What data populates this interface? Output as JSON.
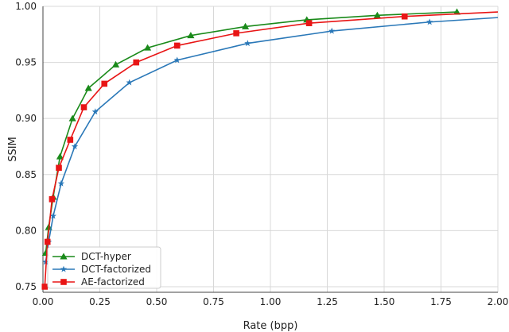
{
  "chart_data": {
    "type": "line",
    "title": "",
    "xlabel": "Rate (bpp)",
    "ylabel": "SSIM",
    "xlim": [
      0.0,
      2.0
    ],
    "ylim": [
      0.745,
      1.0
    ],
    "xticks": [
      0.0,
      0.25,
      0.5,
      0.75,
      1.0,
      1.25,
      1.5,
      1.75,
      2.0
    ],
    "xtick_labels": [
      "0.00",
      "0.25",
      "0.50",
      "0.75",
      "1.00",
      "1.25",
      "1.50",
      "1.75",
      "2.00"
    ],
    "yticks": [
      0.75,
      0.8,
      0.85,
      0.9,
      0.95,
      1.0
    ],
    "ytick_labels": [
      "0.75",
      "0.80",
      "0.85",
      "0.90",
      "0.95",
      "1.00"
    ],
    "grid": true,
    "legend_position": "lower-left",
    "series": [
      {
        "name": "DCT-hyper",
        "color": "#1a8a1a",
        "marker": "triangle",
        "x": [
          0.012,
          0.025,
          0.045,
          0.075,
          0.13,
          0.2,
          0.32,
          0.46,
          0.65,
          0.89,
          1.16,
          1.47,
          1.82
        ],
        "y": [
          0.78,
          0.803,
          0.83,
          0.866,
          0.9,
          0.927,
          0.948,
          0.963,
          0.974,
          0.982,
          0.988,
          0.992,
          0.995
        ]
      },
      {
        "name": "DCT-factorized",
        "color": "#2a78b8",
        "marker": "star",
        "x": [
          0.012,
          0.025,
          0.045,
          0.08,
          0.14,
          0.23,
          0.38,
          0.59,
          0.9,
          1.27,
          1.7
        ],
        "y": [
          0.772,
          0.79,
          0.813,
          0.842,
          0.875,
          0.906,
          0.932,
          0.952,
          0.967,
          0.978,
          0.986
        ],
        "extend_to": [
          2.0,
          0.99
        ]
      },
      {
        "name": "AE-factorized",
        "color": "#e81515",
        "marker": "square",
        "x": [
          0.008,
          0.02,
          0.04,
          0.07,
          0.12,
          0.18,
          0.27,
          0.41,
          0.59,
          0.85,
          1.17,
          1.59
        ],
        "y": [
          0.75,
          0.79,
          0.828,
          0.856,
          0.881,
          0.91,
          0.931,
          0.95,
          0.965,
          0.976,
          0.985,
          0.991
        ],
        "extend_to": [
          2.0,
          0.995
        ]
      }
    ]
  }
}
